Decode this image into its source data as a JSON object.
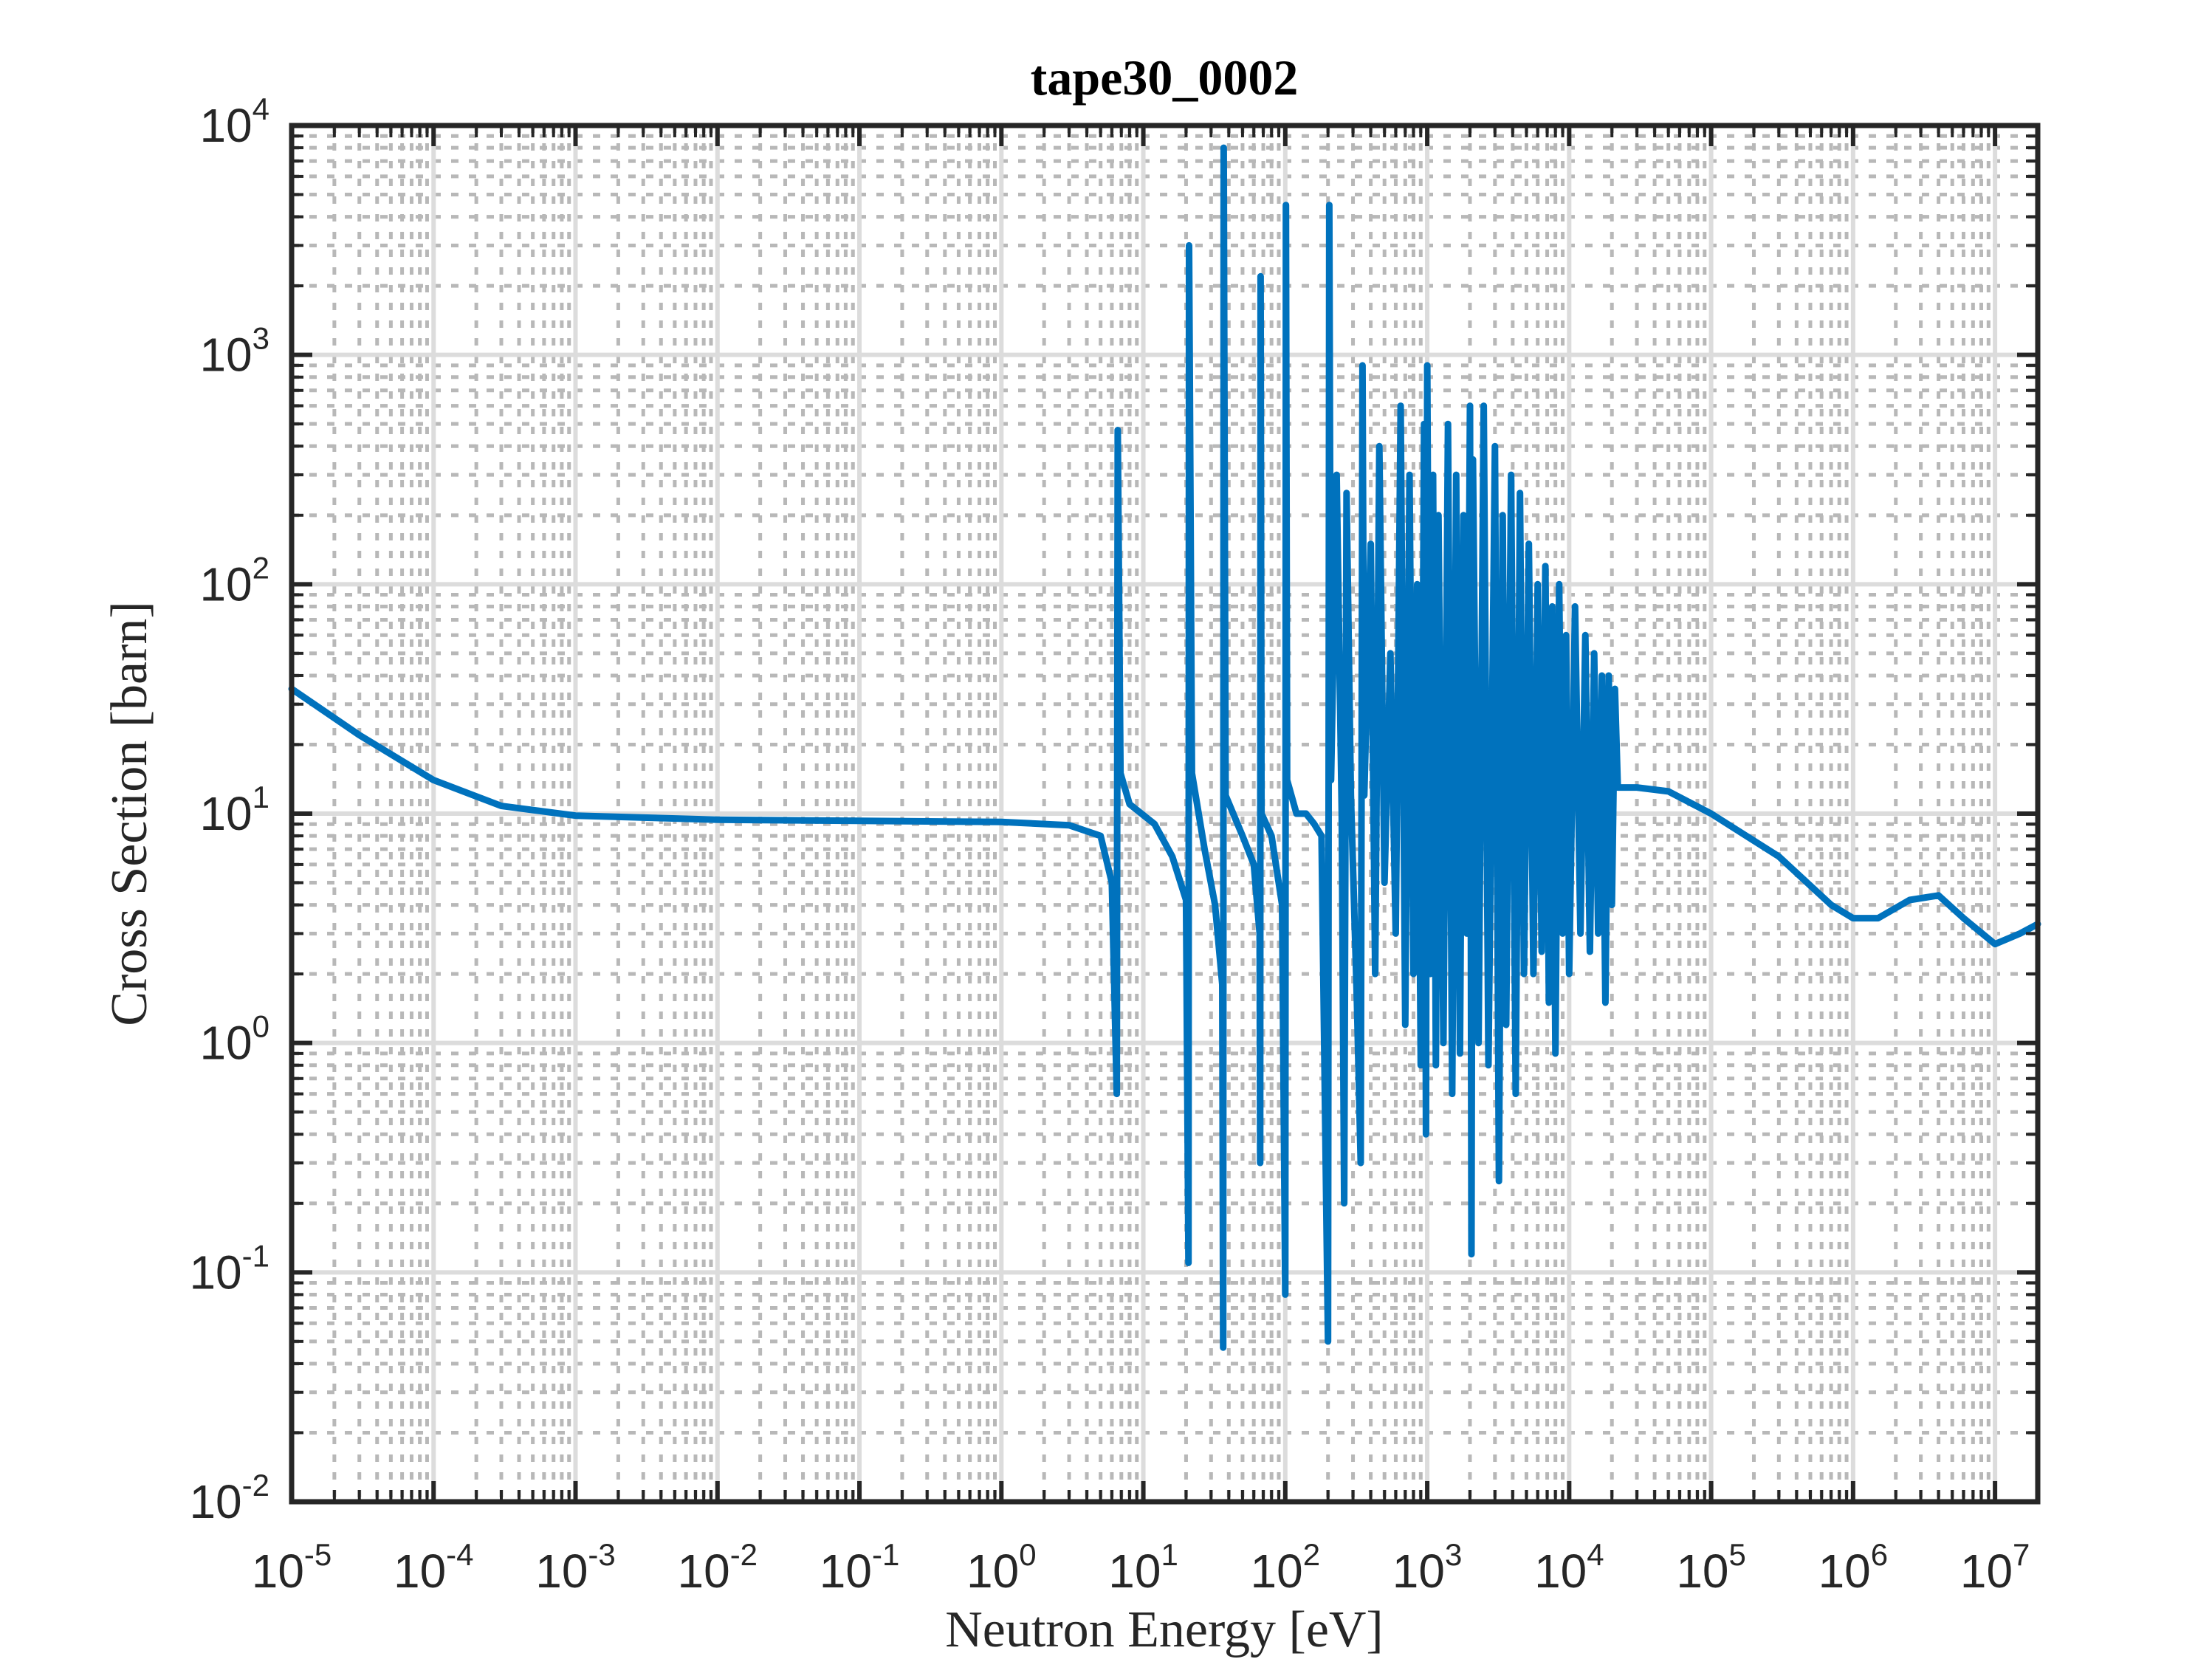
{
  "chart_data": {
    "type": "line",
    "title": "tape30_0002",
    "xlabel": "Neutron Energy [eV]",
    "ylabel": "Cross Section [barn]",
    "xscale": "log",
    "yscale": "log",
    "xlim": [
      1e-05,
      20000000
    ],
    "ylim": [
      0.01,
      10000
    ],
    "grid": true,
    "minor_grid": true,
    "x_ticks": [
      {
        "base": "10",
        "exp": "-5",
        "value": 1e-05
      },
      {
        "base": "10",
        "exp": "-4",
        "value": 0.0001
      },
      {
        "base": "10",
        "exp": "-3",
        "value": 0.001
      },
      {
        "base": "10",
        "exp": "-2",
        "value": 0.01
      },
      {
        "base": "10",
        "exp": "-1",
        "value": 0.1
      },
      {
        "base": "10",
        "exp": "0",
        "value": 1
      },
      {
        "base": "10",
        "exp": "1",
        "value": 10
      },
      {
        "base": "10",
        "exp": "2",
        "value": 100
      },
      {
        "base": "10",
        "exp": "3",
        "value": 1000
      },
      {
        "base": "10",
        "exp": "4",
        "value": 10000
      },
      {
        "base": "10",
        "exp": "5",
        "value": 100000
      },
      {
        "base": "10",
        "exp": "6",
        "value": 1000000
      },
      {
        "base": "10",
        "exp": "7",
        "value": 10000000
      }
    ],
    "y_ticks": [
      {
        "base": "10",
        "exp": "-2",
        "value": 0.01
      },
      {
        "base": "10",
        "exp": "-1",
        "value": 0.1
      },
      {
        "base": "10",
        "exp": "0",
        "value": 1
      },
      {
        "base": "10",
        "exp": "1",
        "value": 10
      },
      {
        "base": "10",
        "exp": "2",
        "value": 100
      },
      {
        "base": "10",
        "exp": "3",
        "value": 1000
      },
      {
        "base": "10",
        "exp": "4",
        "value": 10000
      }
    ],
    "series": [
      {
        "name": "tape30_0002",
        "color": "#0072BD",
        "points": [
          [
            1e-05,
            35
          ],
          [
            3e-05,
            22
          ],
          [
            0.0001,
            14
          ],
          [
            0.0003,
            10.8
          ],
          [
            0.001,
            9.8
          ],
          [
            0.01,
            9.4
          ],
          [
            0.1,
            9.3
          ],
          [
            1,
            9.2
          ],
          [
            3,
            8.9
          ],
          [
            5,
            8.0
          ],
          [
            6,
            5.0
          ],
          [
            6.5,
            0.6
          ],
          [
            6.6,
            470
          ],
          [
            6.9,
            15
          ],
          [
            8,
            11
          ],
          [
            12,
            9
          ],
          [
            16,
            6.5
          ],
          [
            20,
            4.2
          ],
          [
            20.8,
            0.11
          ],
          [
            21,
            3000
          ],
          [
            22,
            15
          ],
          [
            27,
            7
          ],
          [
            32,
            4
          ],
          [
            36,
            1.8
          ],
          [
            36.5,
            0.047
          ],
          [
            36.8,
            8000
          ],
          [
            38,
            12
          ],
          [
            50,
            8
          ],
          [
            60,
            6
          ],
          [
            66,
            3
          ],
          [
            66.5,
            0.3
          ],
          [
            67,
            2200
          ],
          [
            68,
            10
          ],
          [
            80,
            8
          ],
          [
            95,
            4
          ],
          [
            100,
            0.08
          ],
          [
            101,
            4500
          ],
          [
            103,
            14
          ],
          [
            120,
            10
          ],
          [
            140,
            10
          ],
          [
            160,
            9
          ],
          [
            180,
            8
          ],
          [
            200,
            0.05
          ],
          [
            204,
            4500
          ],
          [
            210,
            14
          ],
          [
            230,
            300
          ],
          [
            250,
            10
          ],
          [
            260,
            0.2
          ],
          [
            270,
            250
          ],
          [
            290,
            12
          ],
          [
            320,
            1.5
          ],
          [
            340,
            0.3
          ],
          [
            350,
            900
          ],
          [
            360,
            12
          ],
          [
            400,
            150
          ],
          [
            430,
            2
          ],
          [
            460,
            400
          ],
          [
            500,
            5
          ],
          [
            550,
            50
          ],
          [
            600,
            3
          ],
          [
            650,
            600
          ],
          [
            700,
            1.2
          ],
          [
            750,
            300
          ],
          [
            800,
            2
          ],
          [
            850,
            100
          ],
          [
            900,
            0.8
          ],
          [
            950,
            500
          ],
          [
            980,
            0.4
          ],
          [
            1000,
            900
          ],
          [
            1050,
            2
          ],
          [
            1100,
            300
          ],
          [
            1150,
            0.8
          ],
          [
            1200,
            200
          ],
          [
            1300,
            1
          ],
          [
            1400,
            500
          ],
          [
            1500,
            0.6
          ],
          [
            1600,
            300
          ],
          [
            1700,
            0.9
          ],
          [
            1800,
            200
          ],
          [
            1900,
            3
          ],
          [
            2000,
            600
          ],
          [
            2050,
            0.12
          ],
          [
            2100,
            350
          ],
          [
            2300,
            1
          ],
          [
            2500,
            600
          ],
          [
            2700,
            0.8
          ],
          [
            3000,
            400
          ],
          [
            3200,
            0.25
          ],
          [
            3400,
            200
          ],
          [
            3600,
            1.2
          ],
          [
            3900,
            300
          ],
          [
            4200,
            0.6
          ],
          [
            4500,
            250
          ],
          [
            4800,
            2
          ],
          [
            5200,
            150
          ],
          [
            5600,
            2
          ],
          [
            6000,
            100
          ],
          [
            6400,
            2.5
          ],
          [
            6800,
            120
          ],
          [
            7200,
            1.5
          ],
          [
            7600,
            80
          ],
          [
            8000,
            0.9
          ],
          [
            8500,
            100
          ],
          [
            9000,
            3
          ],
          [
            9500,
            60
          ],
          [
            10000,
            2
          ],
          [
            11000,
            80
          ],
          [
            12000,
            3
          ],
          [
            13000,
            60
          ],
          [
            14000,
            2.5
          ],
          [
            15000,
            50
          ],
          [
            16000,
            3
          ],
          [
            17000,
            40
          ],
          [
            18000,
            1.5
          ],
          [
            19000,
            40
          ],
          [
            20000,
            4
          ],
          [
            21000,
            35
          ],
          [
            22000,
            13
          ],
          [
            30000,
            13
          ],
          [
            50000,
            12.5
          ],
          [
            100000,
            10
          ],
          [
            300000,
            6.5
          ],
          [
            700000,
            4
          ],
          [
            1000000,
            3.5
          ],
          [
            1500000,
            3.5
          ],
          [
            2500000,
            4.2
          ],
          [
            4000000,
            4.4
          ],
          [
            6000000,
            3.5
          ],
          [
            10000000,
            2.7
          ],
          [
            15000000,
            3.0
          ],
          [
            20000000,
            3.3
          ]
        ]
      }
    ]
  }
}
